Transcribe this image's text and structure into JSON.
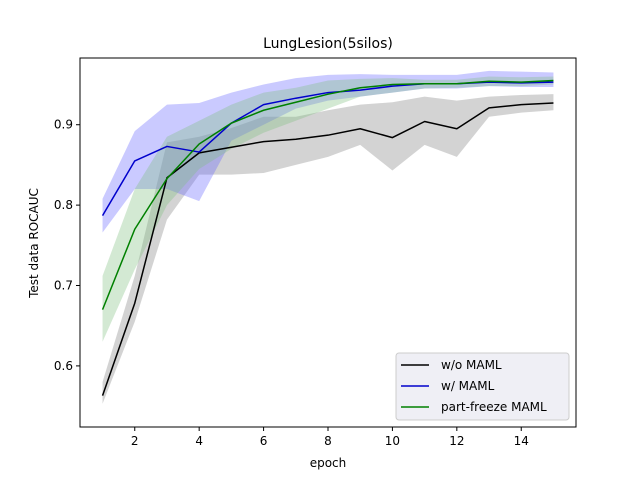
{
  "chart_data": {
    "type": "line",
    "title": "LungLesion(5silos)",
    "xlabel": "epoch",
    "ylabel": "Test data ROCAUC",
    "xlim": [
      0.3,
      15.7
    ],
    "ylim": [
      0.524,
      0.983
    ],
    "xticks": [
      2,
      4,
      6,
      8,
      10,
      12,
      14
    ],
    "yticks": [
      0.6,
      0.7,
      0.8,
      0.9
    ],
    "ytick_labels": [
      "0.6",
      "0.7",
      "0.8",
      "0.9"
    ],
    "grid": false,
    "legend_position": "lower-right",
    "x": [
      1,
      2,
      3,
      4,
      5,
      6,
      7,
      8,
      9,
      10,
      11,
      12,
      13,
      14,
      15
    ],
    "series": [
      {
        "name": "w/o MAML",
        "color": "#000000",
        "band_color": "#808080",
        "values": [
          0.563,
          0.678,
          0.834,
          0.865,
          0.872,
          0.879,
          0.882,
          0.887,
          0.895,
          0.884,
          0.904,
          0.895,
          0.921,
          0.925,
          0.927
        ],
        "lower": [
          0.553,
          0.655,
          0.782,
          0.838,
          0.838,
          0.84,
          0.85,
          0.86,
          0.875,
          0.843,
          0.875,
          0.86,
          0.91,
          0.915,
          0.918
        ],
        "upper": [
          0.58,
          0.712,
          0.878,
          0.885,
          0.896,
          0.91,
          0.91,
          0.918,
          0.925,
          0.928,
          0.935,
          0.93,
          0.935,
          0.937,
          0.938
        ]
      },
      {
        "name": "w/ MAML",
        "color": "#0000cc",
        "band_color": "#6666ff",
        "values": [
          0.787,
          0.855,
          0.873,
          0.866,
          0.902,
          0.925,
          0.933,
          0.94,
          0.943,
          0.948,
          0.951,
          0.951,
          0.953,
          0.952,
          0.953
        ],
        "lower": [
          0.766,
          0.82,
          0.82,
          0.805,
          0.88,
          0.9,
          0.92,
          0.93,
          0.935,
          0.94,
          0.945,
          0.945,
          0.948,
          0.947,
          0.947
        ],
        "upper": [
          0.808,
          0.892,
          0.925,
          0.927,
          0.94,
          0.95,
          0.958,
          0.962,
          0.963,
          0.962,
          0.962,
          0.962,
          0.967,
          0.966,
          0.965
        ]
      },
      {
        "name": "part-freeze MAML",
        "color": "#008000",
        "band_color": "#80c080",
        "values": [
          0.67,
          0.77,
          0.833,
          0.876,
          0.902,
          0.918,
          0.928,
          0.938,
          0.946,
          0.95,
          0.951,
          0.951,
          0.954,
          0.953,
          0.955
        ],
        "lower": [
          0.63,
          0.72,
          0.8,
          0.845,
          0.87,
          0.89,
          0.905,
          0.92,
          0.935,
          0.94,
          0.945,
          0.946,
          0.948,
          0.948,
          0.95
        ],
        "upper": [
          0.712,
          0.82,
          0.885,
          0.905,
          0.925,
          0.94,
          0.946,
          0.955,
          0.957,
          0.958,
          0.956,
          0.956,
          0.96,
          0.959,
          0.96
        ]
      }
    ]
  }
}
